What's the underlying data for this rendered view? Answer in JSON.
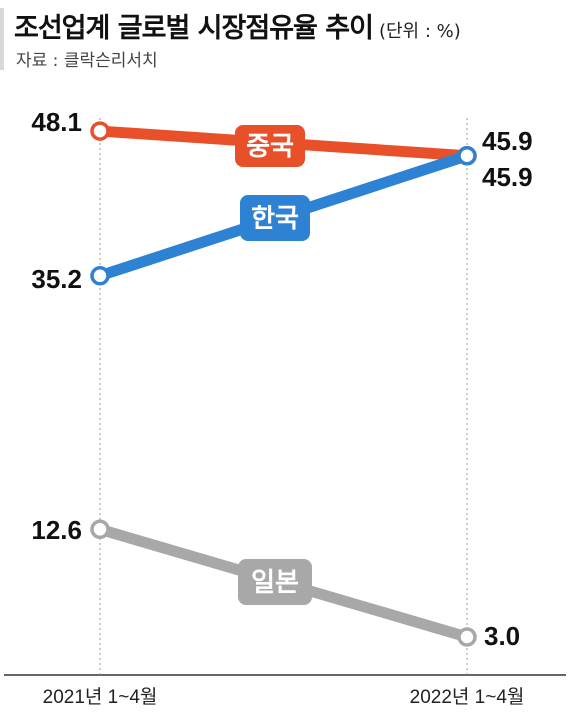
{
  "header": {
    "title": "조선업계 글로벌 시장점유율 추이",
    "unit": "(단위 : %)",
    "source": "자료 : 클락슨리서치"
  },
  "chart_data": {
    "type": "line",
    "title": "조선업계 글로벌 시장점유율 추이",
    "unit": "%",
    "x": [
      "2021년 1~4월",
      "2022년 1~4월"
    ],
    "grid": false,
    "series": [
      {
        "name": "중국",
        "values": [
          48.1,
          45.9
        ],
        "color": "#e8502a"
      },
      {
        "name": "한국",
        "values": [
          35.2,
          45.9
        ],
        "color": "#2e82d3"
      },
      {
        "name": "일본",
        "values": [
          12.6,
          3.0
        ],
        "color": "#a8a8a8"
      }
    ]
  }
}
